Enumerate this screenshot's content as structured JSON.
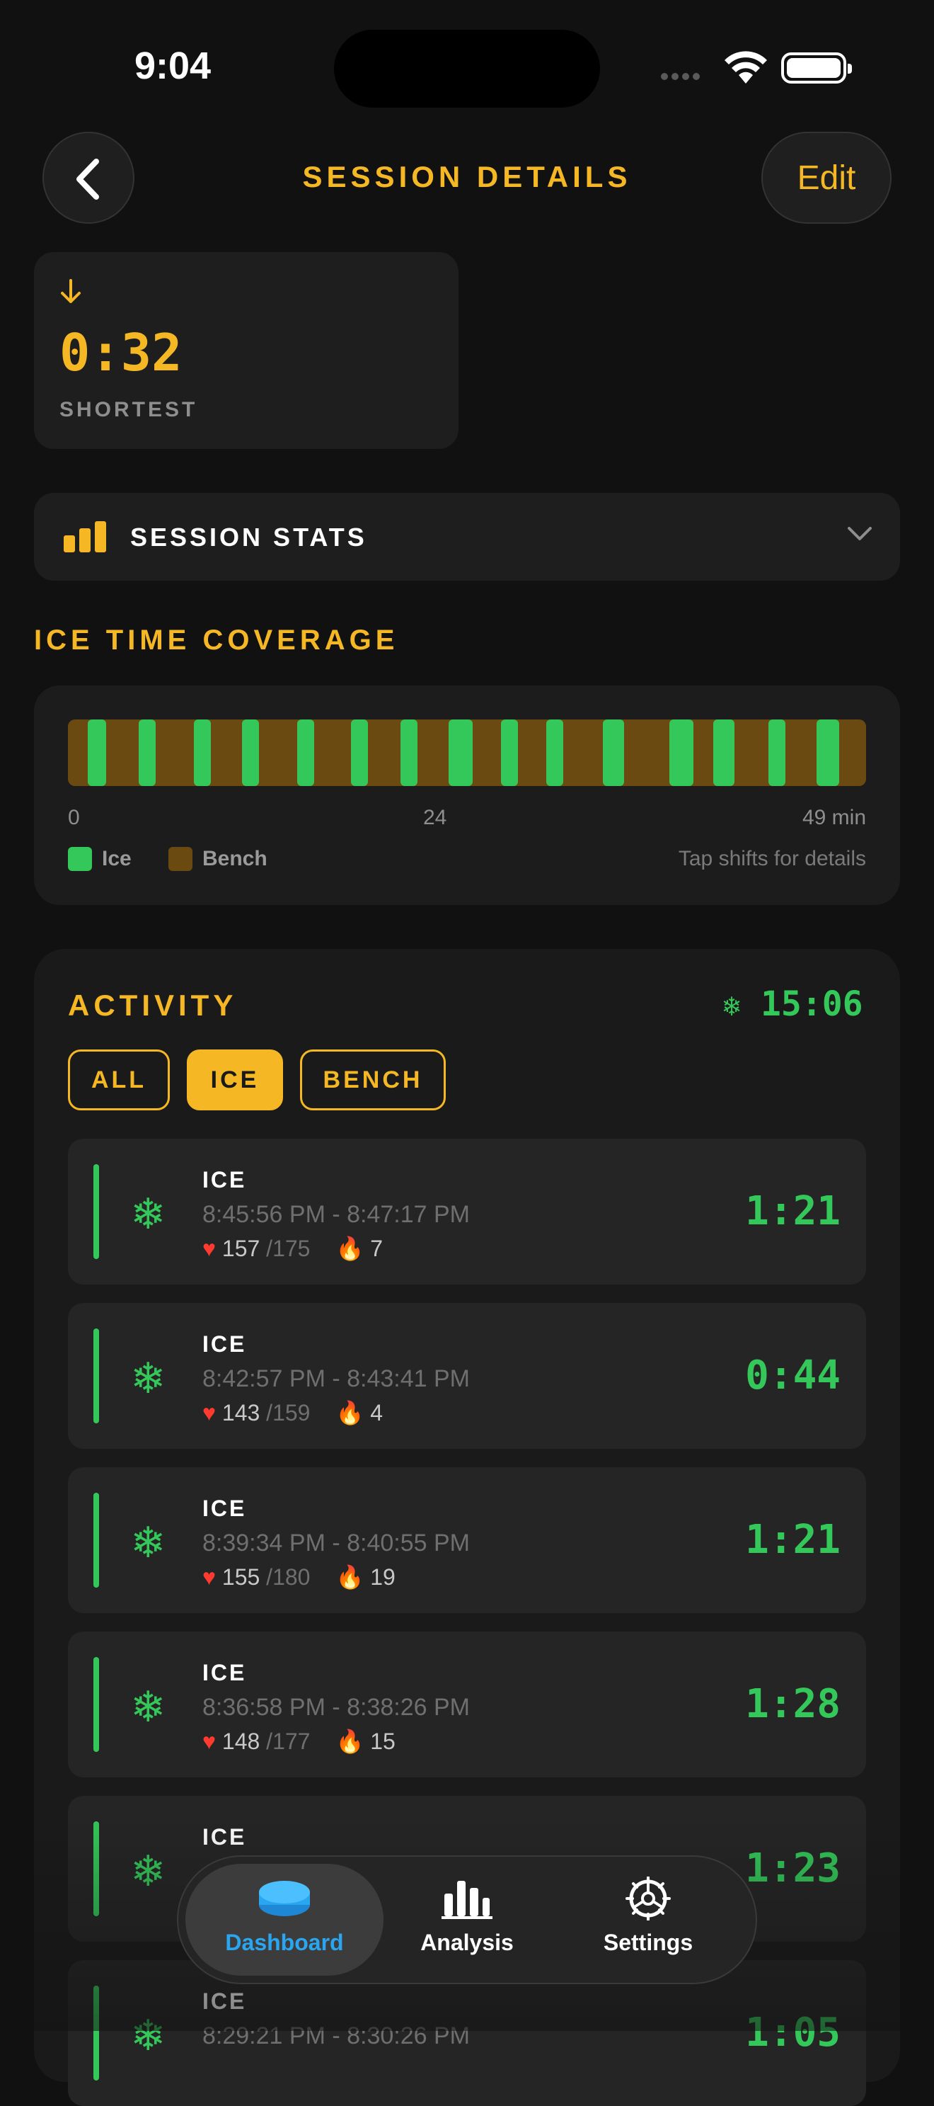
{
  "status_bar": {
    "time": "9:04"
  },
  "header": {
    "title": "SESSION DETAILS",
    "edit_label": "Edit"
  },
  "shortest": {
    "value": "0:32",
    "label": "SHORTEST"
  },
  "session_stats": {
    "label": "SESSION STATS"
  },
  "coverage": {
    "title": "ICE TIME COVERAGE",
    "ticks": [
      "0",
      "24",
      "49 min"
    ],
    "legend": {
      "ice": "Ice",
      "bench": "Bench"
    },
    "hint": "Tap shifts for details",
    "colors": {
      "ice": "#34c759",
      "bench": "#6b4a12"
    }
  },
  "activity": {
    "title": "ACTIVITY",
    "total": "15:06",
    "filters": [
      "ALL",
      "ICE",
      "BENCH"
    ],
    "active_filter": "ICE",
    "rows": [
      {
        "label": "ICE",
        "time": "8:45:56 PM - 8:47:17 PM",
        "hr": "157",
        "hr_max": "/175",
        "cal": "7",
        "duration": "1:21"
      },
      {
        "label": "ICE",
        "time": "8:42:57 PM - 8:43:41 PM",
        "hr": "143",
        "hr_max": "/159",
        "cal": "4",
        "duration": "0:44"
      },
      {
        "label": "ICE",
        "time": "8:39:34 PM - 8:40:55 PM",
        "hr": "155",
        "hr_max": "/180",
        "cal": "19",
        "duration": "1:21"
      },
      {
        "label": "ICE",
        "time": "8:36:58 PM - 8:38:26 PM",
        "hr": "148",
        "hr_max": "/177",
        "cal": "15",
        "duration": "1:28"
      },
      {
        "label": "ICE",
        "time": "",
        "hr": "",
        "hr_max": "",
        "cal": "",
        "duration": "1:23"
      },
      {
        "label": "ICE",
        "time": "8:29:21 PM - 8:30:26 PM",
        "hr": "",
        "hr_max": "",
        "cal": "",
        "duration": "1:05"
      }
    ]
  },
  "tabbar": {
    "items": [
      {
        "label": "Dashboard",
        "icon": "puck-icon",
        "active": true
      },
      {
        "label": "Analysis",
        "icon": "bar-chart-icon",
        "active": false
      },
      {
        "label": "Settings",
        "icon": "gear-icon",
        "active": false
      }
    ]
  },
  "colors": {
    "accent": "#f5b824",
    "ice": "#34c759",
    "heart": "#ff3b30",
    "tab_active": "#2aa6f0"
  }
}
